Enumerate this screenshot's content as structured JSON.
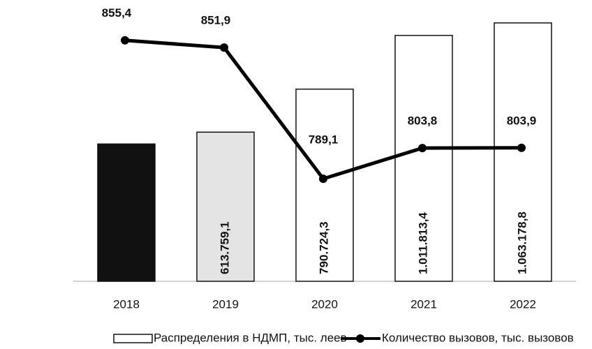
{
  "chart_data": {
    "type": "bar",
    "categories": [
      "2018",
      "2019",
      "2020",
      "2021",
      "2022"
    ],
    "ylim": [
      0,
      1100000
    ],
    "y2lim": [
      740,
      868
    ],
    "legend": "bottom",
    "series": [
      {
        "name": "Распределения в НДМП, тыс. леев",
        "type": "bar",
        "values": [
          565000,
          613759.1,
          790724.3,
          1011813.4,
          1063178.8
        ],
        "value_labels": [
          null,
          "613.759,1",
          "790.724,3",
          "1.011.813,4",
          "1.063.178,8"
        ],
        "colors": [
          "#111111",
          "#e4e4e4",
          "#ffffff",
          "#ffffff",
          "#ffffff"
        ]
      },
      {
        "name": "Количество вызовов, тыс. вызовов",
        "type": "line",
        "axis": "y2",
        "color": "#000000",
        "values": [
          855.4,
          851.9,
          789.1,
          803.8,
          803.9
        ],
        "value_labels": [
          "855,4",
          "851,9",
          "789,1",
          "803,8",
          "803,9"
        ]
      }
    ]
  }
}
